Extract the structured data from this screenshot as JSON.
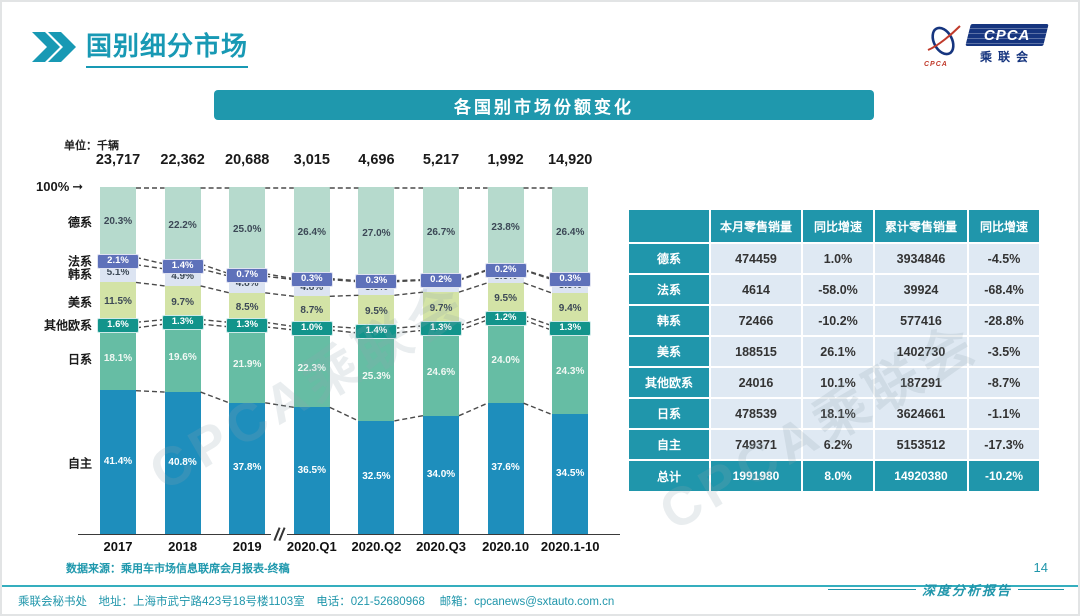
{
  "page": {
    "title": "国别细分市场",
    "page_number": "14",
    "report_label": "深度分析报告",
    "footer": "乘联会秘书处　地址：上海市武宁路423号18号楼1103室　电话：021-52680968　 邮箱：cpcanews@sxtauto.com.cn"
  },
  "logo": {
    "icon_text": "CPCA",
    "box_text": "CPCA",
    "sub_text": "乘联会"
  },
  "banner": {
    "title": "各国别市场份额变化"
  },
  "chart": {
    "unit_label": "单位：千辆",
    "axis_100_label": "100%",
    "source": "数据来源：乘用车市场信息联席会月报表-终稿",
    "watermark": "CPCA乘联会"
  },
  "chart_data": {
    "type": "bar",
    "stacked": true,
    "unit": "千辆",
    "categories": [
      "2017",
      "2018",
      "2019",
      "2020.Q1",
      "2020.Q2",
      "2020.Q3",
      "2020.10",
      "2020.1-10"
    ],
    "totals": [
      "23,717",
      "22,362",
      "20,688",
      "3,015",
      "4,696",
      "5,217",
      "1,992",
      "14,920"
    ],
    "axis_break_after_index": 2,
    "series": [
      {
        "name": "自主",
        "color": "#1e8ebc",
        "text": "#ffffff",
        "tag": false,
        "values": [
          41.4,
          40.8,
          37.8,
          36.5,
          32.5,
          34.0,
          37.6,
          34.5
        ]
      },
      {
        "name": "日系",
        "color": "#66bda4",
        "text": "#f2f8f4",
        "tag": false,
        "values": [
          18.1,
          19.6,
          21.9,
          22.3,
          25.3,
          24.6,
          24.0,
          24.3
        ]
      },
      {
        "name": "其他欧系",
        "color": "#12948b",
        "text": "#ffffff",
        "tag": true,
        "values": [
          1.6,
          1.3,
          1.3,
          1.0,
          1.4,
          1.3,
          1.2,
          1.3
        ]
      },
      {
        "name": "美系",
        "color": "#d3e3a6",
        "text": "#3c4856",
        "tag": false,
        "values": [
          11.5,
          9.7,
          8.5,
          8.7,
          9.5,
          9.7,
          9.5,
          9.4
        ]
      },
      {
        "name": "韩系",
        "color": "#dce4f2",
        "text": "#3c4856",
        "tag": false,
        "values": [
          5.1,
          4.9,
          4.8,
          4.8,
          3.9,
          3.4,
          3.6,
          3.9
        ]
      },
      {
        "name": "法系",
        "color": "#5e71ba",
        "text": "#ffffff",
        "tag": true,
        "values": [
          2.1,
          1.4,
          0.7,
          0.3,
          0.3,
          0.2,
          0.2,
          0.3
        ]
      },
      {
        "name": "德系",
        "color": "#b6dacd",
        "text": "#3c4856",
        "tag": false,
        "values": [
          20.3,
          22.2,
          25.0,
          26.4,
          27.0,
          26.7,
          23.8,
          26.4
        ]
      }
    ]
  },
  "table": {
    "headers": [
      "",
      "本月零售销量",
      "同比增速",
      "累计零售销量",
      "同比增速"
    ],
    "rows": [
      {
        "label": "德系",
        "cells": [
          "474459",
          "1.0%",
          "3934846",
          "-4.5%"
        ]
      },
      {
        "label": "法系",
        "cells": [
          "4614",
          "-58.0%",
          "39924",
          "-68.4%"
        ]
      },
      {
        "label": "韩系",
        "cells": [
          "72466",
          "-10.2%",
          "577416",
          "-28.8%"
        ]
      },
      {
        "label": "美系",
        "cells": [
          "188515",
          "26.1%",
          "1402730",
          "-3.5%"
        ]
      },
      {
        "label": "其他欧系",
        "cells": [
          "24016",
          "10.1%",
          "187291",
          "-8.7%"
        ]
      },
      {
        "label": "日系",
        "cells": [
          "478539",
          "18.1%",
          "3624661",
          "-1.1%"
        ]
      },
      {
        "label": "自主",
        "cells": [
          "749371",
          "6.2%",
          "5153512",
          "-17.3%"
        ]
      }
    ],
    "total_row": {
      "label": "总计",
      "cells": [
        "1991980",
        "8.0%",
        "14920380",
        "-10.2%"
      ]
    }
  },
  "colors": {
    "accent": "#1f98ad",
    "table_teal": "#2096ab",
    "table_cell_bg": "#dfe9f3",
    "logo_navy": "#16357f",
    "dash_line": "#4a4a4a"
  }
}
